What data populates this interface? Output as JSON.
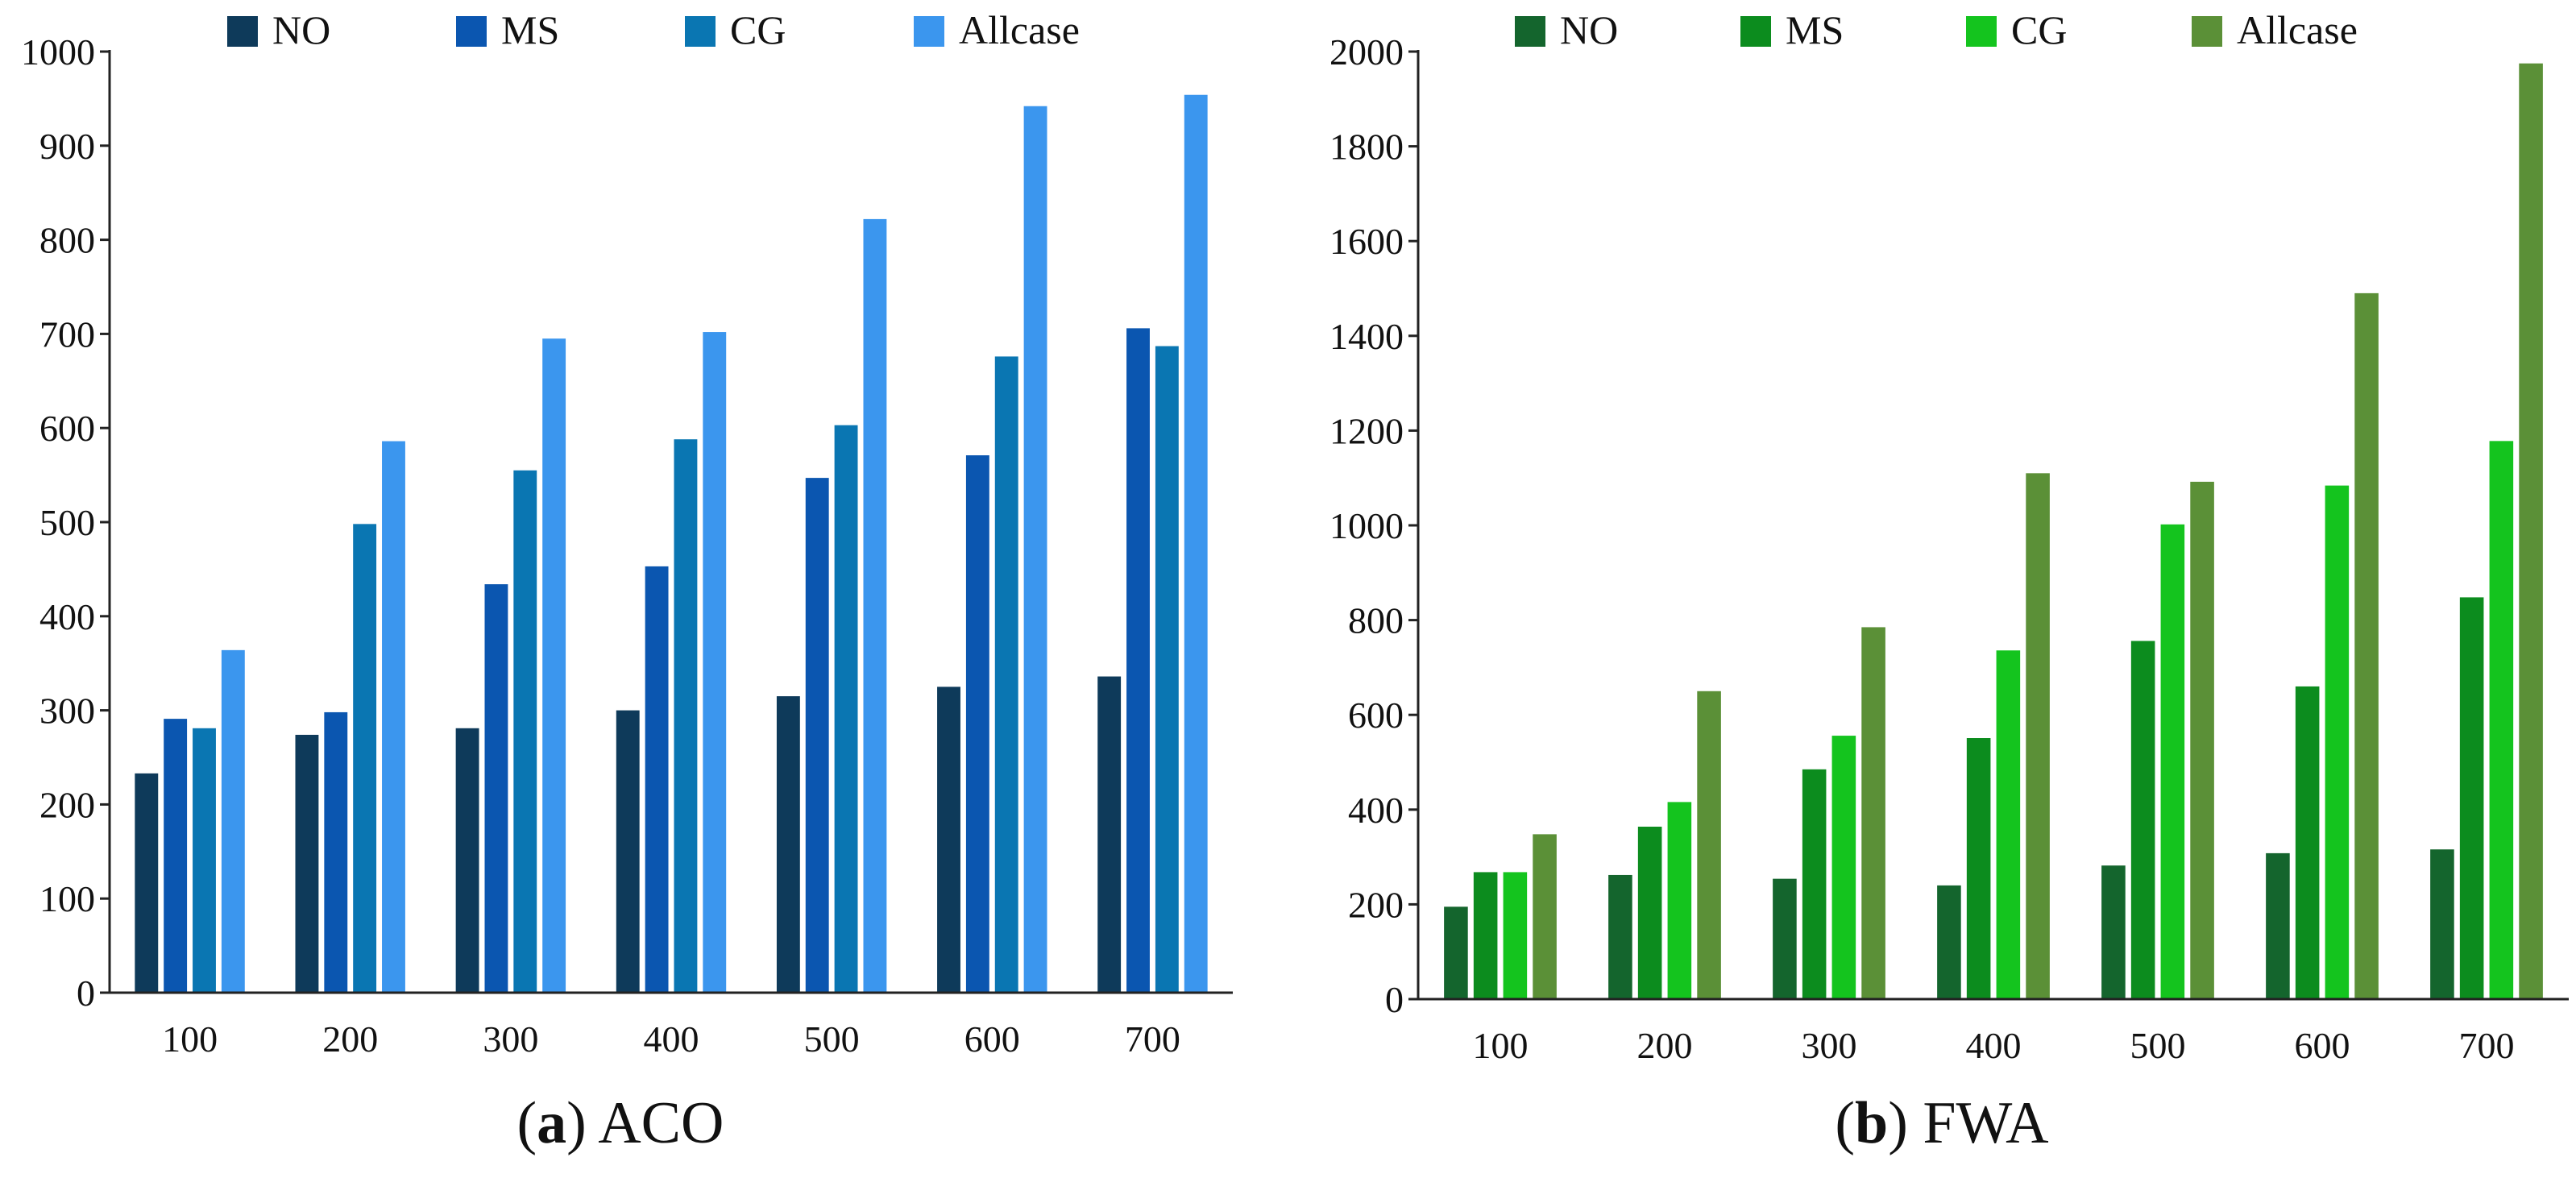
{
  "chart_data": [
    {
      "type": "bar",
      "panel_letter": "a",
      "title": "ACO",
      "categories": [
        "100",
        "200",
        "300",
        "400",
        "500",
        "600",
        "700"
      ],
      "ylim": [
        0,
        1000
      ],
      "yticks": [
        0,
        100,
        200,
        300,
        400,
        500,
        600,
        700,
        800,
        900,
        1000
      ],
      "xlabel": "",
      "ylabel": "",
      "grid": false,
      "legend": "top",
      "series": [
        {
          "name": "NO",
          "color": "#0e3a5a",
          "values": [
            233,
            274,
            281,
            300,
            315,
            325,
            336
          ]
        },
        {
          "name": "MS",
          "color": "#0b56b0",
          "values": [
            291,
            298,
            434,
            453,
            547,
            571,
            706
          ]
        },
        {
          "name": "CG",
          "color": "#0a76b2",
          "values": [
            281,
            498,
            555,
            588,
            603,
            676,
            687
          ]
        },
        {
          "name": "Allcase",
          "color": "#3b96ee",
          "values": [
            364,
            586,
            695,
            702,
            822,
            942,
            954
          ]
        }
      ]
    },
    {
      "type": "bar",
      "panel_letter": "b",
      "title": "FWA",
      "categories": [
        "100",
        "200",
        "300",
        "400",
        "500",
        "600",
        "700"
      ],
      "ylim": [
        0,
        2000
      ],
      "yticks": [
        0,
        200,
        400,
        600,
        800,
        1000,
        1200,
        1400,
        1600,
        1800,
        2000
      ],
      "xlabel": "",
      "ylabel": "",
      "grid": false,
      "legend": "top",
      "series": [
        {
          "name": "NO",
          "color": "#14652d",
          "values": [
            195,
            262,
            254,
            240,
            282,
            308,
            316
          ]
        },
        {
          "name": "MS",
          "color": "#0c8c1e",
          "values": [
            268,
            364,
            485,
            551,
            756,
            660,
            848
          ]
        },
        {
          "name": "CG",
          "color": "#14c41e",
          "values": [
            268,
            416,
            556,
            736,
            1002,
            1084,
            1178
          ]
        },
        {
          "name": "Allcase",
          "color": "#5b9037",
          "values": [
            348,
            650,
            785,
            1110,
            1092,
            1490,
            1975
          ]
        }
      ]
    }
  ]
}
